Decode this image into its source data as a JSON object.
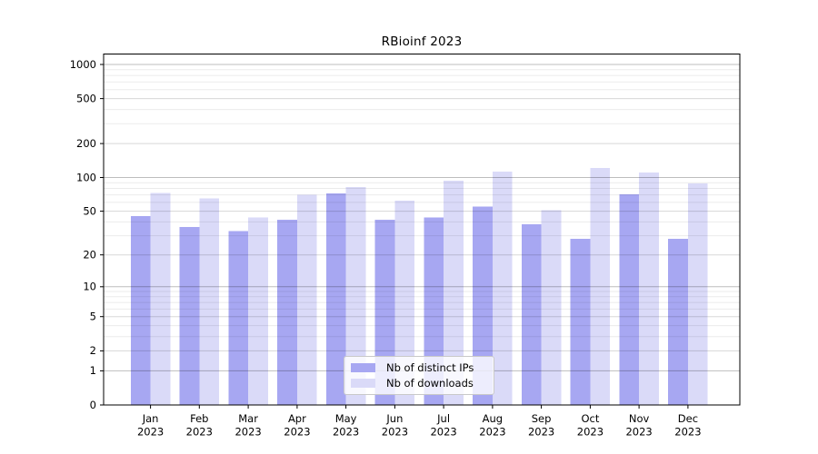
{
  "chart_data": {
    "type": "bar",
    "title": "RBioinf 2023",
    "categories": [
      "Jan 2023",
      "Feb 2023",
      "Mar 2023",
      "Apr 2023",
      "May 2023",
      "Jun 2023",
      "Jul 2023",
      "Aug 2023",
      "Sep 2023",
      "Oct 2023",
      "Nov 2023",
      "Dec 2023"
    ],
    "series": [
      {
        "name": "Nb of distinct IPs",
        "color": "#a7a7f2",
        "values": [
          45,
          36,
          33,
          42,
          72,
          42,
          44,
          55,
          38,
          28,
          71,
          28
        ]
      },
      {
        "name": "Nb of downloads",
        "color": "#dadaf8",
        "values": [
          73,
          65,
          44,
          70,
          82,
          62,
          94,
          113,
          51,
          122,
          111,
          89
        ]
      }
    ],
    "y_axis": {
      "scale": "log1p",
      "tick_values": [
        1000,
        500,
        200,
        100,
        50,
        20,
        10,
        5,
        2,
        1,
        0
      ],
      "min": 0,
      "max": 1200,
      "grid": "on",
      "major_grid_values": [
        1,
        10,
        100,
        1000
      ]
    },
    "legend": {
      "position": "lower-center"
    }
  }
}
